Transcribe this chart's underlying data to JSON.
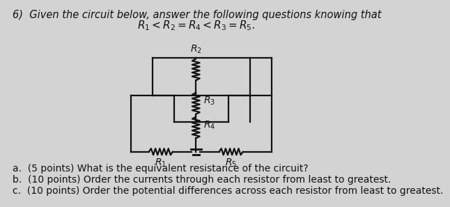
{
  "title_line1": "6)  Given the circuit below, answer the following questions knowing that",
  "title_line2": "$R_1 < R_2 = R_4 < R_3 = R_5$.",
  "question_a": "a.  (5 points) What is the equivalent resistance of the circuit?",
  "question_b": "b.  (10 points) Order the currents through each resistor from least to greatest.",
  "question_c": "c.  (10 points) Order the potential differences across each resistor from least to greatest.",
  "bg_color": "#d3d3d3",
  "line_color": "#111111",
  "text_color": "#111111",
  "font_size_title": 10.5,
  "font_size_questions": 10.0
}
